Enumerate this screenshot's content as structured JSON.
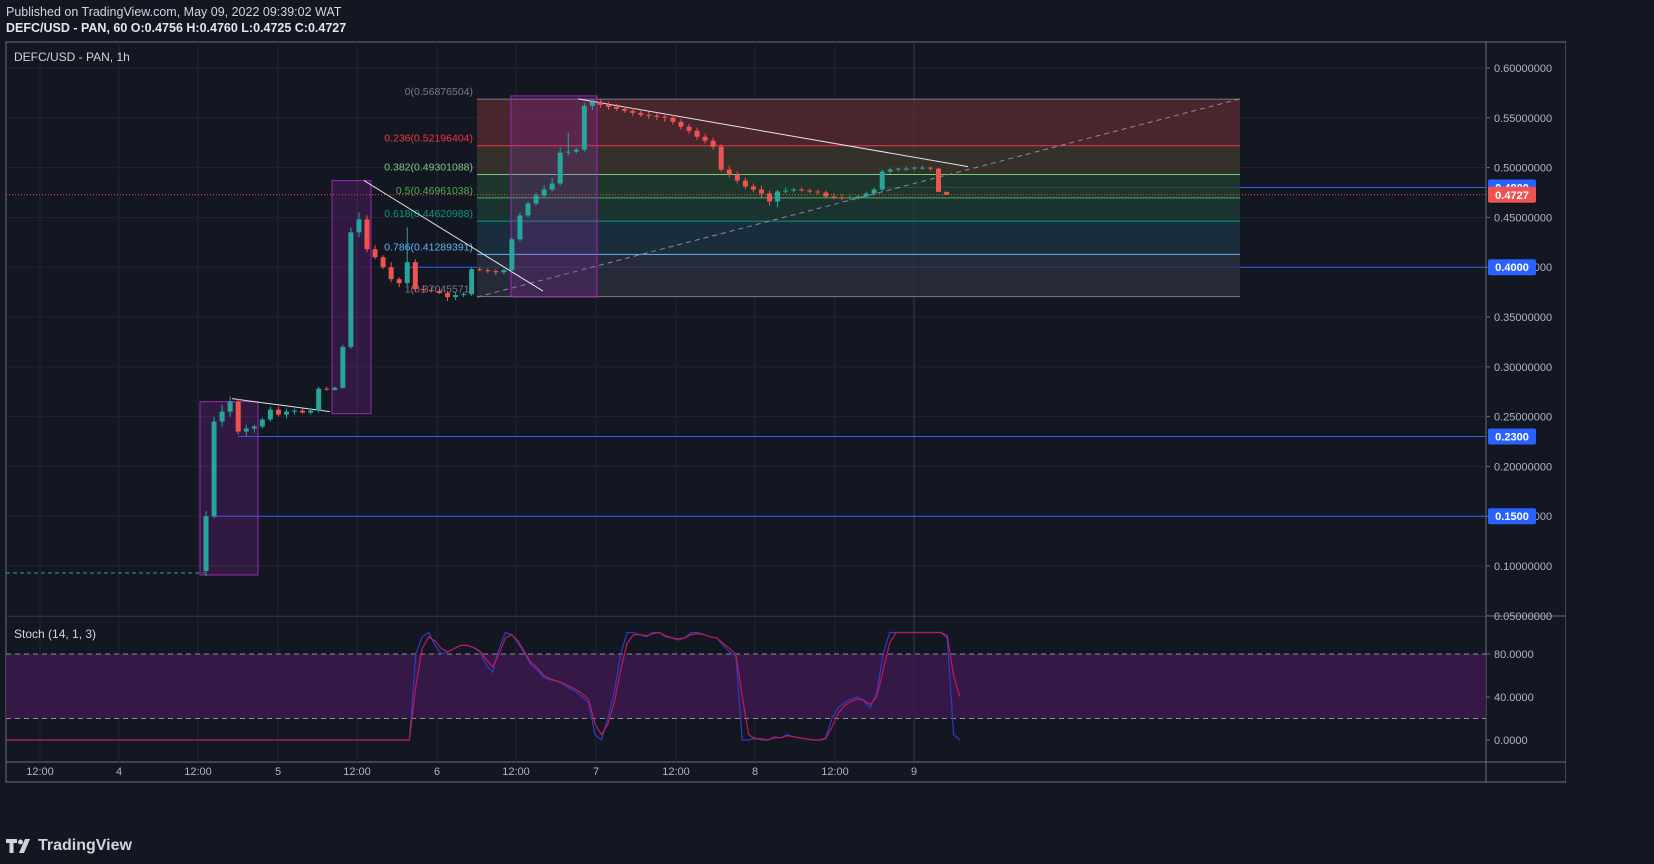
{
  "header": {
    "published": "Published on TradingView.com, May 09, 2022 09:39:02 WAT",
    "ohlc_line": "DEFC/USD - PAN, 60 O:0.4756 H:0.4760 L:0.4725 C:0.4727"
  },
  "footer": {
    "brand": "TradingView"
  },
  "colors": {
    "background": "#131722",
    "up": "#26a69a",
    "down": "#ef5350",
    "grid": "#1f2430",
    "border": "#6b6f7a",
    "hline": "#2962ff",
    "box": "#9c27b0",
    "stoch_k": "#2e3dbd",
    "stoch_d": "#c2185b",
    "stoch_band": "#3b1a4e"
  },
  "chart_data": [
    {
      "type": "candlestick",
      "title": "DEFC/USD - PAN, 1h",
      "symbol": "DEFC/USD",
      "exchange": "PAN",
      "interval": "1h",
      "x_tick_labels": [
        "12:00",
        "4",
        "12:00",
        "5",
        "12:00",
        "6",
        "12:00",
        "7",
        "12:00",
        "8",
        "12:00",
        "9"
      ],
      "y_tick_labels": [
        "0.60000000",
        "0.55000000",
        "0.50000000",
        "0.45000000",
        "0.40000000",
        "0.35000000",
        "0.30000000",
        "0.25000000",
        "0.20000000",
        "0.15000000",
        "0.10000000",
        "0.05000000"
      ],
      "ylim": [
        0.05,
        0.6
      ],
      "grid": true,
      "current_price": {
        "label": "0.4727",
        "value": 0.4727,
        "color": "#ef5350"
      },
      "price_lines": [
        {
          "label": "0.4800",
          "value": 0.48
        },
        {
          "label": "0.4000",
          "value": 0.4
        },
        {
          "label": "0.2300",
          "value": 0.23
        },
        {
          "label": "0.1500",
          "value": 0.15
        }
      ],
      "fibonacci": {
        "levels": [
          {
            "label": "0(0.56876504)",
            "value": 0.56876504,
            "color": "#787b86"
          },
          {
            "label": "0.236(0.52196404)",
            "value": 0.52196404,
            "color": "#f23645"
          },
          {
            "label": "0.382(0.49301088)",
            "value": 0.49301088,
            "color": "#81c784"
          },
          {
            "label": "0.5(0.46961038)",
            "value": 0.46961038,
            "color": "#4caf50"
          },
          {
            "label": "0.618(0.44620988)",
            "value": 0.44620988,
            "color": "#089981"
          },
          {
            "label": "0.786(0.41289391)",
            "value": 0.41289391,
            "color": "#64b5f6"
          },
          {
            "label": "1(0.37045571)",
            "value": 0.37045571,
            "color": "#787b86"
          }
        ]
      },
      "candles": [
        [
          0.095,
          0.155,
          0.09,
          0.15
        ],
        [
          0.15,
          0.25,
          0.148,
          0.245
        ],
        [
          0.245,
          0.262,
          0.24,
          0.255
        ],
        [
          0.255,
          0.27,
          0.25,
          0.265
        ],
        [
          0.265,
          0.268,
          0.232,
          0.235
        ],
        [
          0.235,
          0.242,
          0.23,
          0.238
        ],
        [
          0.238,
          0.242,
          0.234,
          0.24
        ],
        [
          0.24,
          0.249,
          0.238,
          0.247
        ],
        [
          0.247,
          0.26,
          0.245,
          0.257
        ],
        [
          0.257,
          0.26,
          0.25,
          0.252
        ],
        [
          0.252,
          0.258,
          0.248,
          0.255
        ],
        [
          0.255,
          0.258,
          0.252,
          0.256
        ],
        [
          0.256,
          0.258,
          0.253,
          0.254
        ],
        [
          0.254,
          0.258,
          0.252,
          0.256
        ],
        [
          0.256,
          0.28,
          0.254,
          0.278
        ],
        [
          0.278,
          0.28,
          0.276,
          0.277
        ],
        [
          0.277,
          0.28,
          0.276,
          0.279
        ],
        [
          0.279,
          0.322,
          0.278,
          0.32
        ],
        [
          0.32,
          0.44,
          0.318,
          0.435
        ],
        [
          0.435,
          0.455,
          0.43,
          0.448
        ],
        [
          0.448,
          0.452,
          0.415,
          0.418
        ],
        [
          0.418,
          0.422,
          0.408,
          0.41
        ],
        [
          0.41,
          0.412,
          0.398,
          0.4
        ],
        [
          0.4,
          0.405,
          0.385,
          0.388
        ],
        [
          0.388,
          0.39,
          0.38,
          0.384
        ],
        [
          0.384,
          0.44,
          0.382,
          0.405
        ],
        [
          0.405,
          0.408,
          0.375,
          0.378
        ],
        [
          0.378,
          0.382,
          0.374,
          0.377
        ],
        [
          0.377,
          0.38,
          0.375,
          0.376
        ],
        [
          0.376,
          0.378,
          0.373,
          0.374
        ],
        [
          0.374,
          0.376,
          0.366,
          0.37
        ],
        [
          0.37,
          0.375,
          0.367,
          0.372
        ],
        [
          0.372,
          0.375,
          0.37,
          0.373
        ],
        [
          0.373,
          0.4,
          0.371,
          0.398
        ],
        [
          0.398,
          0.4,
          0.396,
          0.397
        ],
        [
          0.397,
          0.399,
          0.394,
          0.396
        ],
        [
          0.396,
          0.398,
          0.392,
          0.395
        ],
        [
          0.395,
          0.398,
          0.393,
          0.397
        ],
        [
          0.397,
          0.43,
          0.395,
          0.428
        ],
        [
          0.428,
          0.455,
          0.426,
          0.452
        ],
        [
          0.452,
          0.466,
          0.45,
          0.464
        ],
        [
          0.464,
          0.475,
          0.462,
          0.472
        ],
        [
          0.472,
          0.482,
          0.47,
          0.478
        ],
        [
          0.478,
          0.49,
          0.476,
          0.484
        ],
        [
          0.484,
          0.52,
          0.482,
          0.515
        ],
        [
          0.515,
          0.535,
          0.512,
          0.516
        ],
        [
          0.516,
          0.52,
          0.514,
          0.518
        ],
        [
          0.518,
          0.565,
          0.516,
          0.562
        ],
        [
          0.562,
          0.568,
          0.558,
          0.566
        ],
        [
          0.566,
          0.569,
          0.56,
          0.563
        ],
        [
          0.563,
          0.566,
          0.558,
          0.561
        ],
        [
          0.561,
          0.564,
          0.557,
          0.559
        ],
        [
          0.559,
          0.562,
          0.555,
          0.557
        ],
        [
          0.557,
          0.56,
          0.552,
          0.555
        ],
        [
          0.555,
          0.558,
          0.551,
          0.553
        ],
        [
          0.553,
          0.556,
          0.549,
          0.552
        ],
        [
          0.552,
          0.555,
          0.548,
          0.551
        ],
        [
          0.551,
          0.554,
          0.546,
          0.55
        ],
        [
          0.55,
          0.553,
          0.543,
          0.546
        ],
        [
          0.546,
          0.549,
          0.538,
          0.541
        ],
        [
          0.541,
          0.544,
          0.534,
          0.537
        ],
        [
          0.537,
          0.54,
          0.528,
          0.531
        ],
        [
          0.531,
          0.534,
          0.524,
          0.527
        ],
        [
          0.527,
          0.53,
          0.518,
          0.521
        ],
        [
          0.521,
          0.524,
          0.496,
          0.498
        ],
        [
          0.498,
          0.502,
          0.49,
          0.493
        ],
        [
          0.493,
          0.496,
          0.484,
          0.487
        ],
        [
          0.487,
          0.49,
          0.478,
          0.481
        ],
        [
          0.481,
          0.484,
          0.475,
          0.478
        ],
        [
          0.478,
          0.482,
          0.47,
          0.474
        ],
        [
          0.474,
          0.477,
          0.462,
          0.466
        ],
        [
          0.466,
          0.478,
          0.46,
          0.476
        ],
        [
          0.476,
          0.48,
          0.474,
          0.477
        ],
        [
          0.477,
          0.48,
          0.475,
          0.478
        ],
        [
          0.478,
          0.48,
          0.476,
          0.477
        ],
        [
          0.477,
          0.479,
          0.474,
          0.476
        ],
        [
          0.476,
          0.478,
          0.473,
          0.475
        ],
        [
          0.475,
          0.477,
          0.47,
          0.471
        ],
        [
          0.471,
          0.474,
          0.468,
          0.47
        ],
        [
          0.47,
          0.473,
          0.467,
          0.469
        ],
        [
          0.469,
          0.472,
          0.467,
          0.47
        ],
        [
          0.47,
          0.473,
          0.468,
          0.471
        ],
        [
          0.471,
          0.476,
          0.469,
          0.474
        ],
        [
          0.474,
          0.48,
          0.472,
          0.478
        ],
        [
          0.478,
          0.498,
          0.476,
          0.496
        ],
        [
          0.496,
          0.5,
          0.494,
          0.498
        ],
        [
          0.498,
          0.5,
          0.496,
          0.499
        ],
        [
          0.499,
          0.501,
          0.497,
          0.499
        ],
        [
          0.499,
          0.501,
          0.497,
          0.5
        ],
        [
          0.5,
          0.502,
          0.498,
          0.5
        ],
        [
          0.5,
          0.501,
          0.497,
          0.499
        ],
        [
          0.499,
          0.5,
          0.476,
          0.4756
        ],
        [
          0.4756,
          0.476,
          0.4725,
          0.4727
        ]
      ]
    },
    {
      "type": "line",
      "title": "Stoch (14, 1, 3)",
      "y_tick_labels": [
        "80.0000",
        "40.0000",
        "0.0000"
      ],
      "ylim": [
        0,
        100
      ],
      "bands": [
        20,
        80
      ],
      "series": [
        {
          "values": [
            0,
            0,
            0,
            0,
            0,
            0,
            0,
            0,
            0,
            0,
            0,
            0,
            0,
            0,
            0,
            0,
            0,
            0,
            0,
            0,
            0,
            0,
            0,
            0,
            0,
            0,
            0,
            0,
            0,
            0,
            0,
            0,
            0,
            0,
            0,
            0,
            0,
            0,
            0,
            0,
            0,
            0,
            0,
            0,
            0,
            0,
            0,
            0,
            0,
            0,
            0,
            0,
            0,
            0,
            0,
            0,
            0,
            0,
            0,
            0,
            0,
            0,
            0,
            0,
            80,
            96,
            100,
            88,
            80,
            82,
            85,
            88,
            88,
            86,
            82,
            70,
            63,
            85,
            100,
            98,
            90,
            80,
            70,
            65,
            58,
            56,
            55,
            52,
            48,
            45,
            40,
            35,
            5,
            0,
            20,
            45,
            80,
            100,
            100,
            98,
            96,
            100,
            100,
            96,
            95,
            93,
            95,
            100,
            100,
            98,
            96,
            95,
            88,
            82,
            78,
            0,
            0,
            2,
            0,
            0,
            3,
            2,
            5,
            3,
            2,
            1,
            0,
            0,
            2,
            20,
            30,
            35,
            38,
            40,
            36,
            30,
            45,
            80,
            100,
            100,
            100,
            100,
            100,
            100,
            100,
            100,
            100,
            95,
            5,
            0
          ]
        },
        {
          "values": [
            0,
            0,
            0,
            0,
            0,
            0,
            0,
            0,
            0,
            0,
            0,
            0,
            0,
            0,
            0,
            0,
            0,
            0,
            0,
            0,
            0,
            0,
            0,
            0,
            0,
            0,
            0,
            0,
            0,
            0,
            0,
            0,
            0,
            0,
            0,
            0,
            0,
            0,
            0,
            0,
            0,
            0,
            0,
            0,
            0,
            0,
            0,
            0,
            0,
            0,
            0,
            0,
            0,
            0,
            0,
            0,
            0,
            0,
            0,
            0,
            0,
            0,
            0,
            0,
            50,
            85,
            96,
            92,
            85,
            82,
            85,
            88,
            88,
            86,
            83,
            75,
            68,
            80,
            95,
            98,
            92,
            82,
            72,
            67,
            60,
            57,
            55,
            53,
            50,
            47,
            43,
            38,
            15,
            5,
            15,
            35,
            65,
            90,
            98,
            98,
            97,
            99,
            100,
            97,
            95,
            94,
            95,
            98,
            99,
            98,
            96,
            95,
            90,
            85,
            80,
            40,
            5,
            1,
            1,
            0,
            2,
            2,
            4,
            3,
            2,
            1,
            0,
            0,
            1,
            12,
            25,
            32,
            36,
            38,
            37,
            33,
            40,
            65,
            90,
            100,
            100,
            100,
            100,
            100,
            100,
            100,
            100,
            97,
            60,
            40
          ]
        }
      ]
    }
  ]
}
